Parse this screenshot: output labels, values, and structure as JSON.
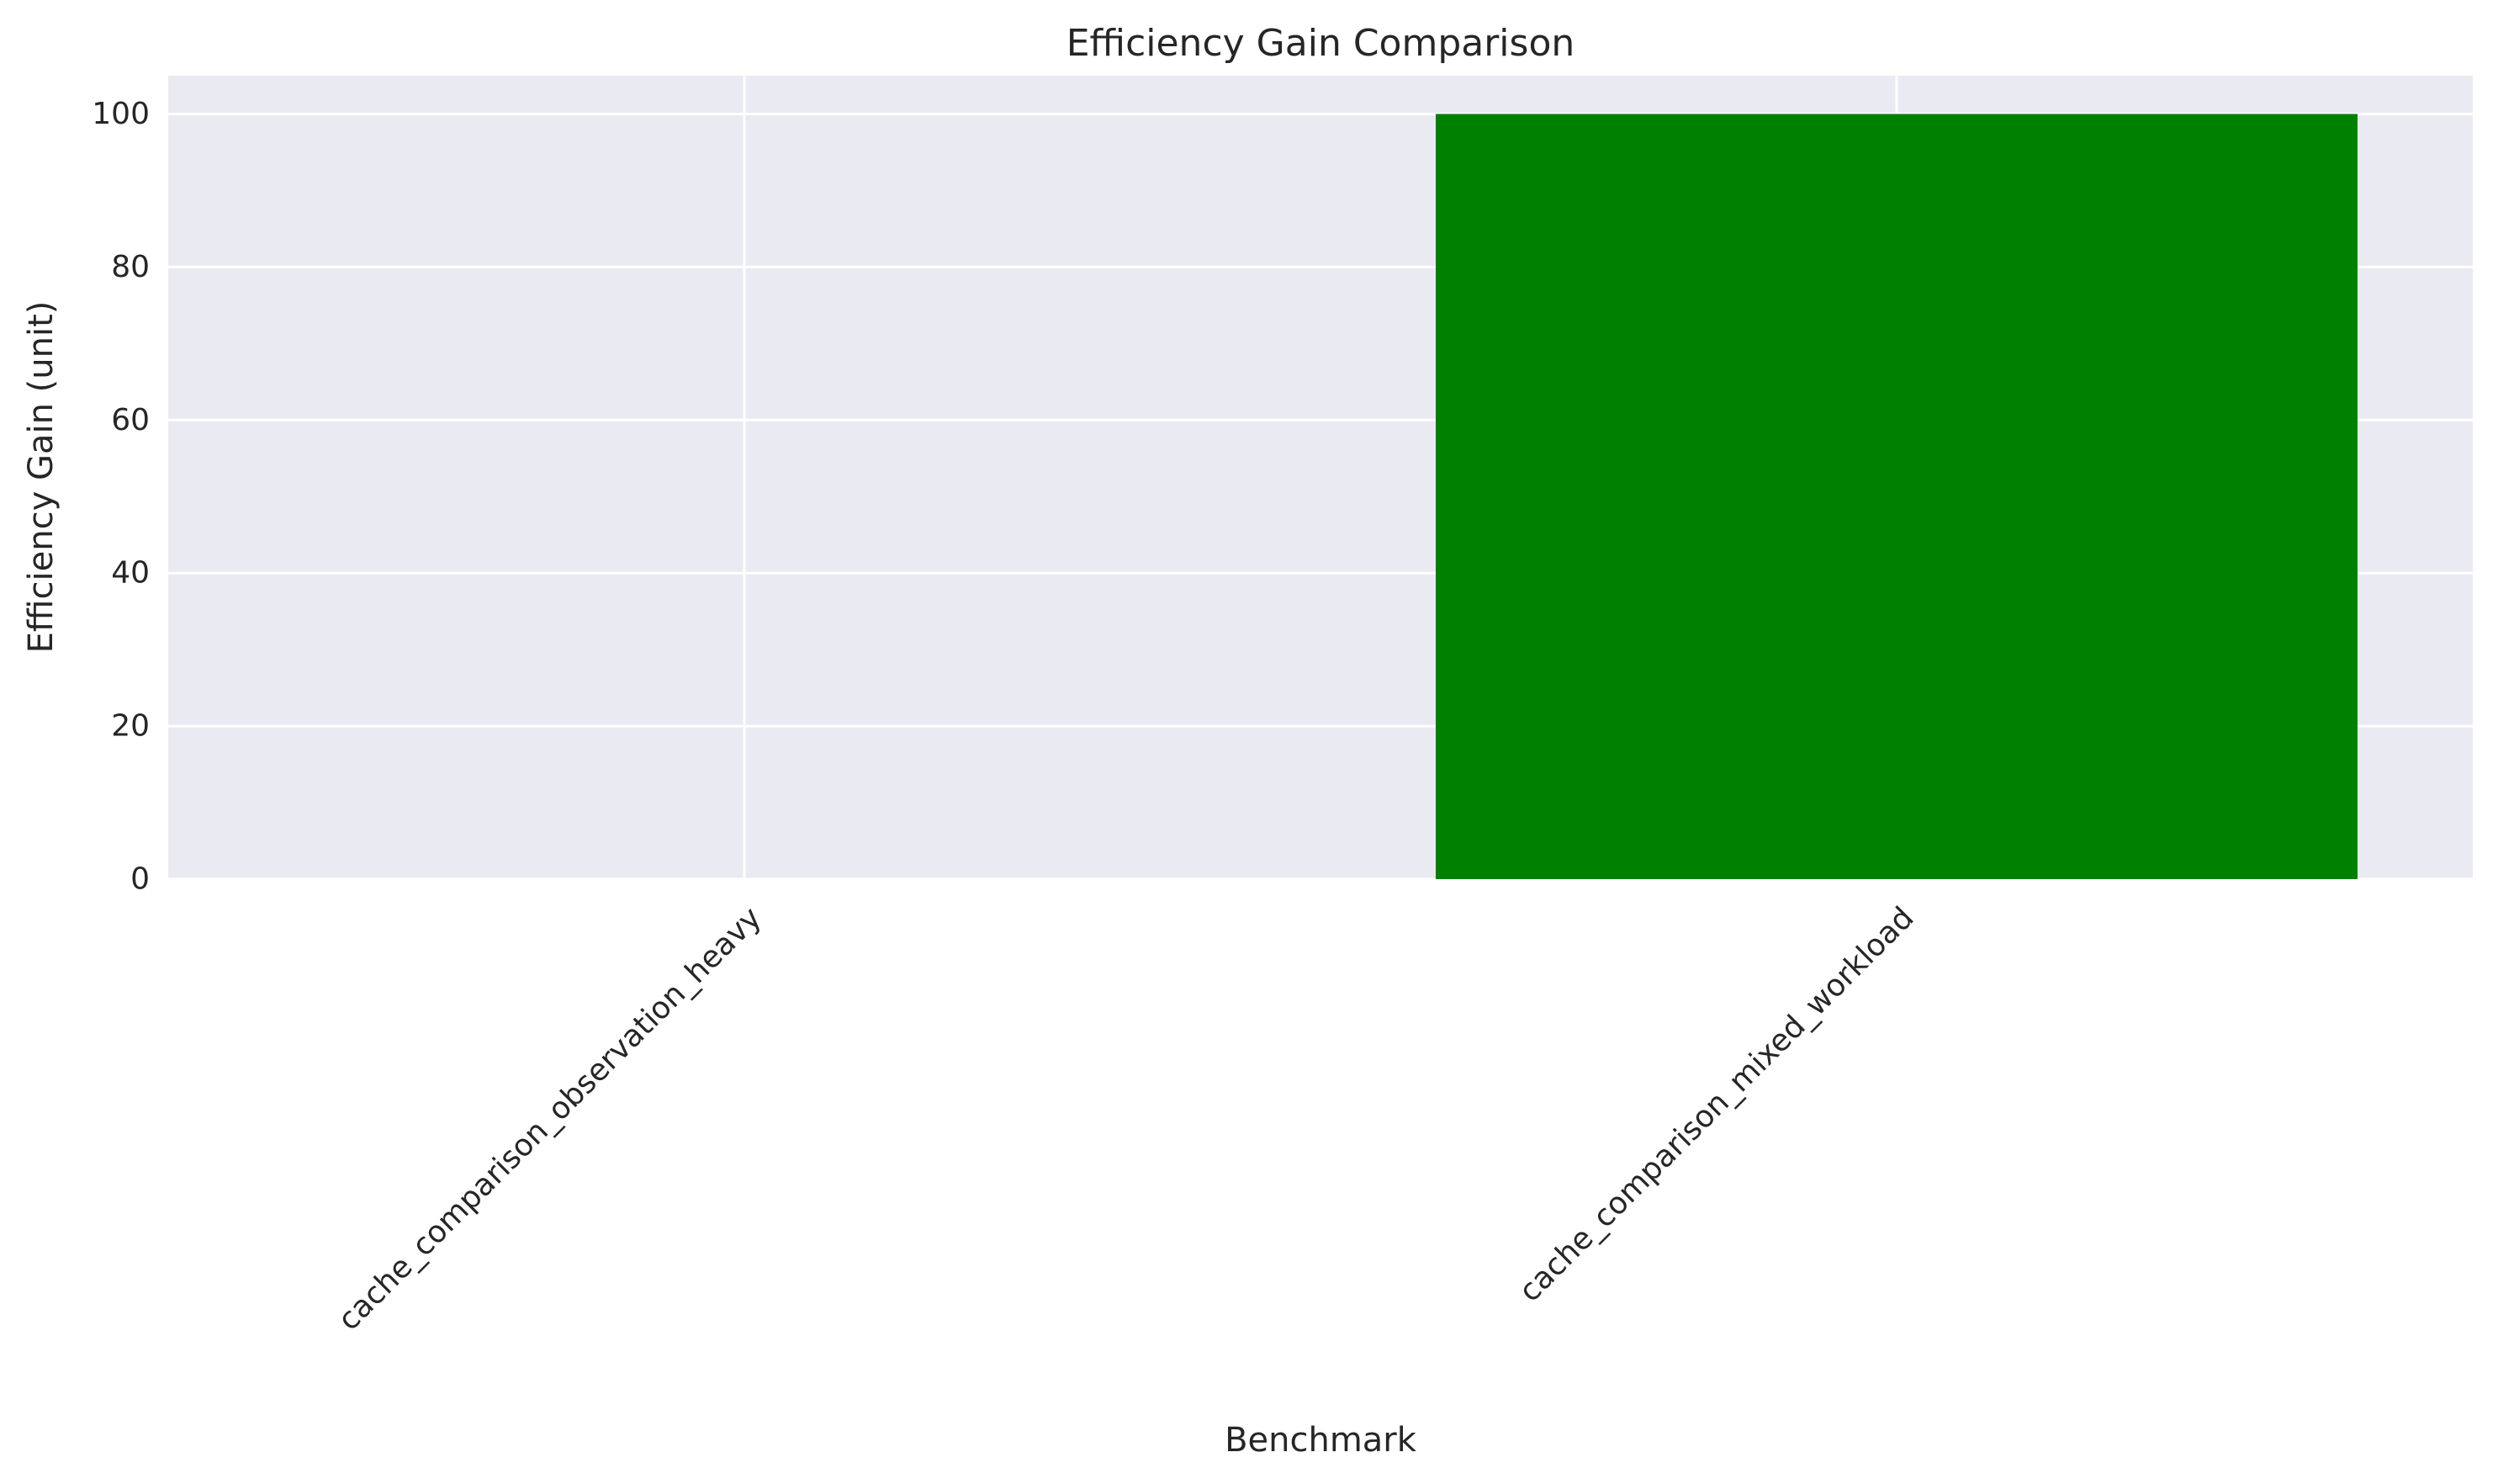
{
  "chart_data": {
    "type": "bar",
    "title": "Efficiency Gain Comparison",
    "xlabel": "Benchmark",
    "ylabel": "Efficiency Gain (unit)",
    "categories": [
      "cache_comparison_observation_heavy",
      "cache_comparison_mixed_workload"
    ],
    "values": [
      0,
      100
    ],
    "bar_colors": [
      "#ff0000",
      "#008000"
    ],
    "ylim": [
      0,
      105
    ],
    "yticks": [
      0,
      20,
      40,
      60,
      80,
      100
    ],
    "ytick_labels": [
      "0",
      "20",
      "40",
      "60",
      "80",
      "100"
    ],
    "xtick_rotation": 45,
    "grid": true,
    "background": "#eaeaf2",
    "grid_color": "#ffffff"
  }
}
